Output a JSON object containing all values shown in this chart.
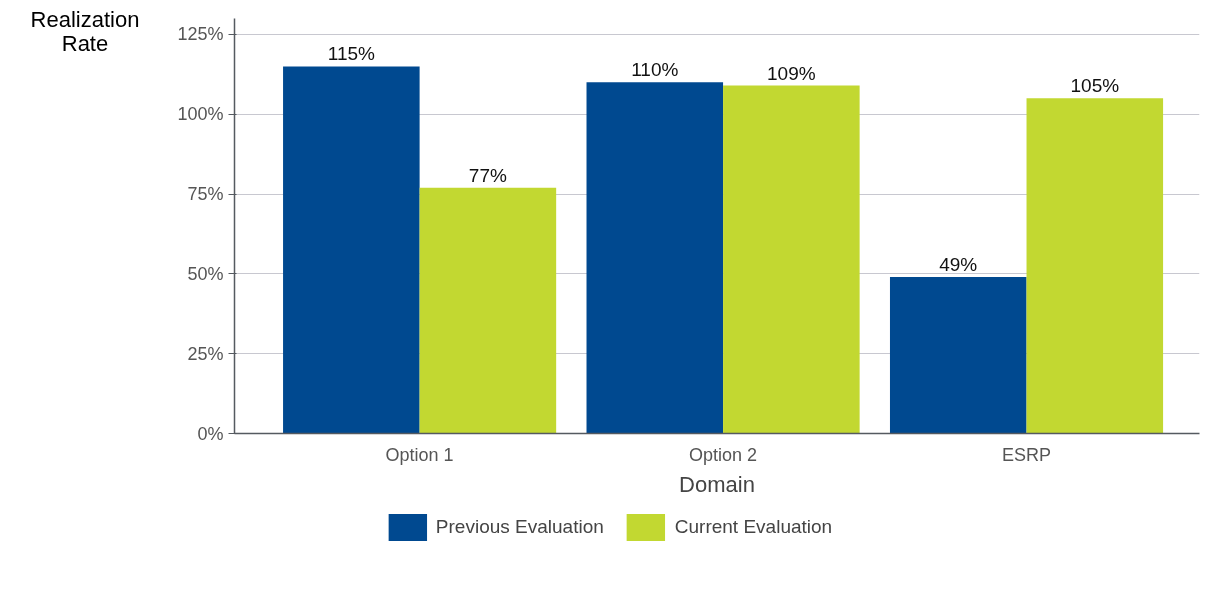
{
  "chart_data": {
    "type": "bar",
    "xlabel": "Domain",
    "ylabel": "Realization\nRate",
    "categories": [
      "Option 1",
      "Option 2",
      "ESRP"
    ],
    "series": [
      {
        "name": "Previous Evaluation",
        "color": "#004990",
        "values": [
          115,
          110,
          49
        ],
        "value_labels": [
          "115%",
          "110%",
          "49%"
        ]
      },
      {
        "name": "Current Evaluation",
        "color": "#c2d831",
        "values": [
          77,
          109,
          105
        ],
        "value_labels": [
          "77%",
          "109%",
          "105%"
        ]
      }
    ],
    "ylim": [
      0,
      130
    ],
    "yticks": [
      {
        "value": 0,
        "label": "0%"
      },
      {
        "value": 25,
        "label": "25%"
      },
      {
        "value": 50,
        "label": "50%"
      },
      {
        "value": 75,
        "label": "75%"
      },
      {
        "value": 100,
        "label": "100%"
      },
      {
        "value": 125,
        "label": "125%"
      }
    ],
    "grid": "y",
    "legend": "bottom"
  }
}
